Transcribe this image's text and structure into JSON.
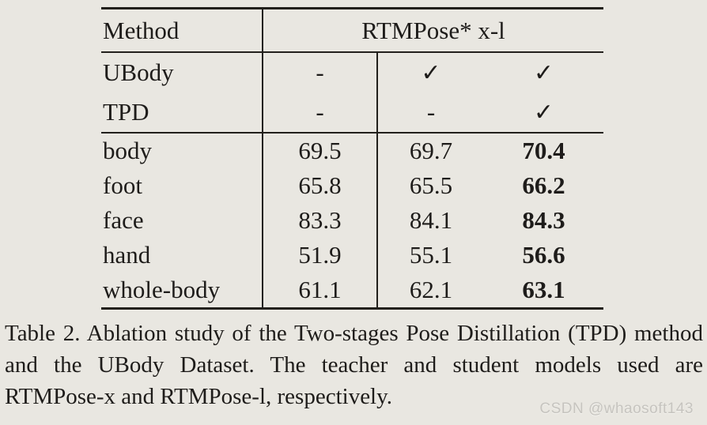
{
  "colors": {
    "background": "#e9e7e1",
    "ink": "#1e1c1a",
    "watermark": "#c6c4bf"
  },
  "table": {
    "header": {
      "method_label": "Method",
      "model_label": "RTMPose* x-l"
    },
    "config_rows": [
      {
        "label": "UBody",
        "cells": [
          "-",
          "✓",
          "✓"
        ]
      },
      {
        "label": "TPD",
        "cells": [
          "-",
          "-",
          "✓"
        ]
      }
    ],
    "data_rows": [
      {
        "label": "body",
        "values": [
          "69.5",
          "69.7",
          "70.4"
        ]
      },
      {
        "label": "foot",
        "values": [
          "65.8",
          "65.5",
          "66.2"
        ]
      },
      {
        "label": "face",
        "values": [
          "83.3",
          "84.1",
          "84.3"
        ]
      },
      {
        "label": "hand",
        "values": [
          "51.9",
          "55.1",
          "56.6"
        ]
      },
      {
        "label": "whole-body",
        "values": [
          "61.1",
          "62.1",
          "63.1"
        ]
      }
    ]
  },
  "caption": {
    "text": "Table 2. Ablation study of the Two-stages Pose Distillation (TPD) method and the UBody Dataset. The teacher and student models used are RTMPose-x and RTMPose-l, respectively."
  },
  "watermark": {
    "text": "CSDN @whaosoft143"
  }
}
